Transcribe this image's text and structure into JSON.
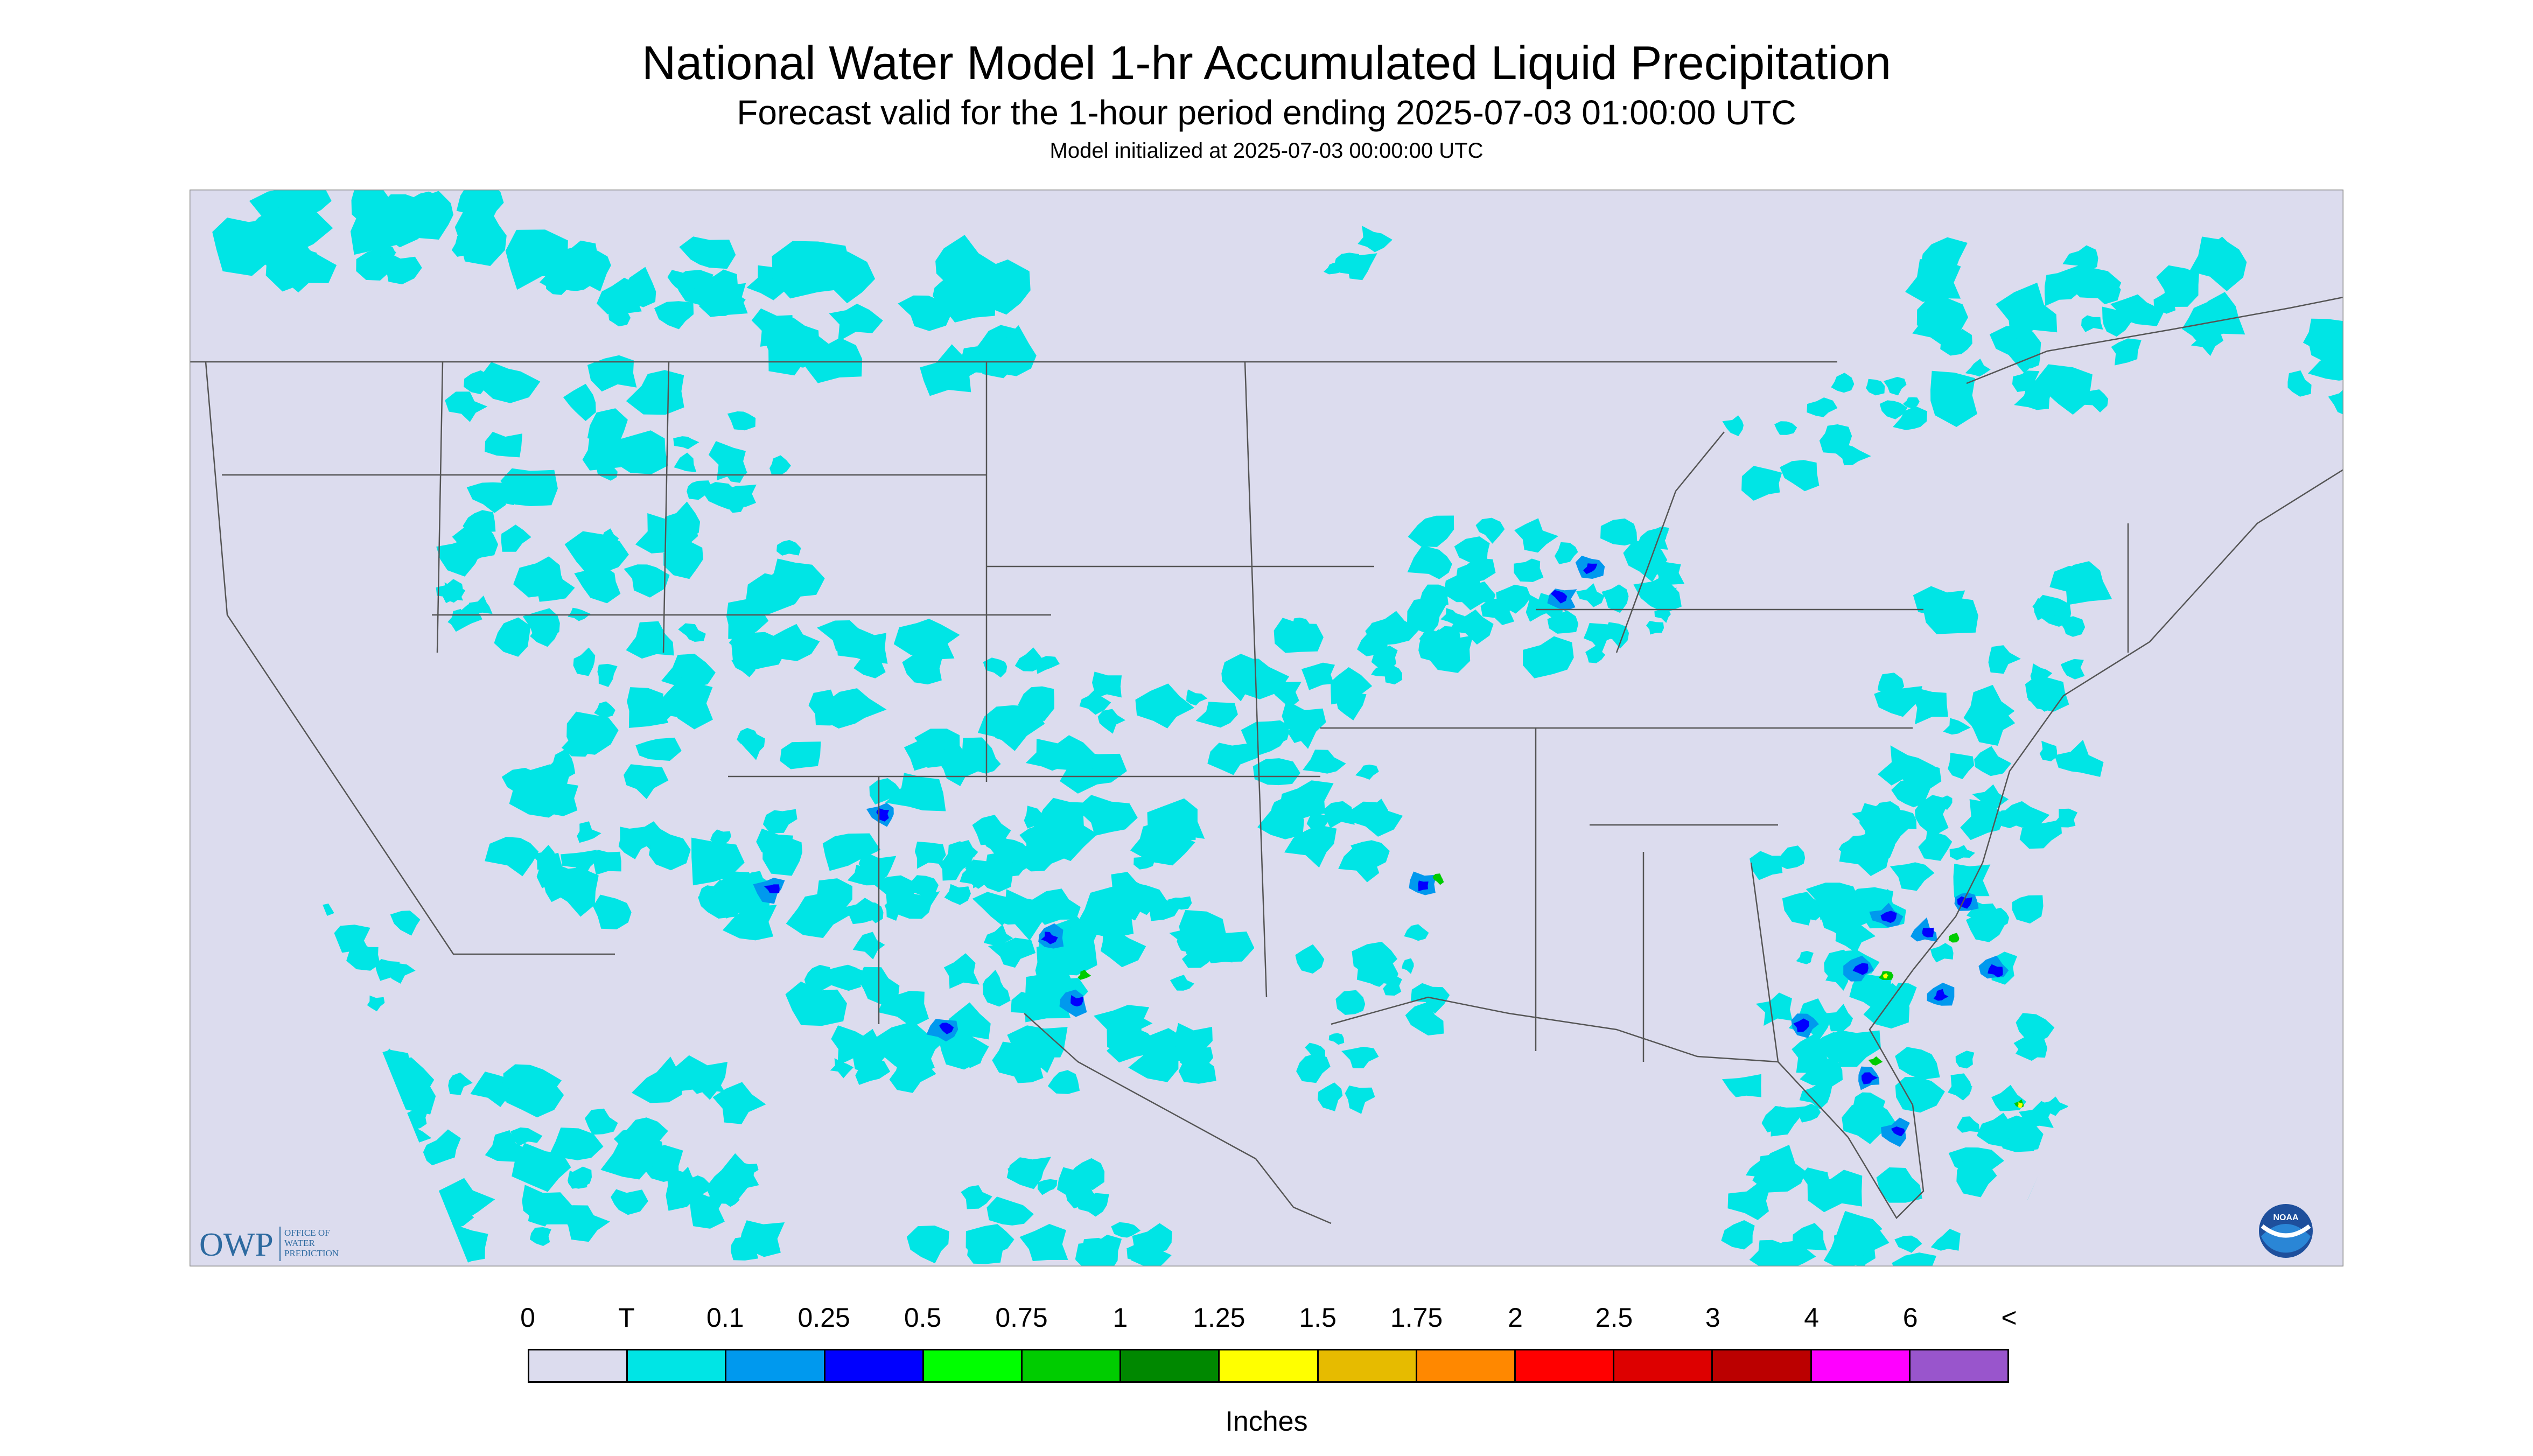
{
  "title": "National Water Model 1-hr Accumulated Liquid Precipitation",
  "subtitle": "Forecast valid for the 1-hour period ending 2025-07-03 01:00:00 UTC",
  "init_line": "Model initialized at 2025-07-03 00:00:00 UTC",
  "logo_owp": {
    "text": "OWP",
    "sub": [
      "OFFICE OF",
      "WATER",
      "PREDICTION"
    ]
  },
  "logo_noaa": "NOAA",
  "legend": {
    "labels": [
      "0",
      "T",
      "0.1",
      "0.25",
      "0.5",
      "0.75",
      "1",
      "1.25",
      "1.5",
      "1.75",
      "2",
      "2.5",
      "3",
      "4",
      "6",
      "<"
    ],
    "colors": [
      "#dcdcee",
      "#00e5e5",
      "#0099ee",
      "#0000ff",
      "#00ff00",
      "#00cc00",
      "#008800",
      "#ffff00",
      "#e6bb00",
      "#ff8800",
      "#ff0000",
      "#dd0000",
      "#bb0000",
      "#ff00ff",
      "#9955cc"
    ],
    "units": "Inches"
  },
  "map_colors": {
    "background": "#dcdcee",
    "trace": "#00e5e5",
    "light": "#0099ee",
    "moderate": "#0000ff",
    "heavy": "#00cc00",
    "very_heavy": "#ffff00",
    "extreme": "#ff8800",
    "boundary": "#555555"
  }
}
